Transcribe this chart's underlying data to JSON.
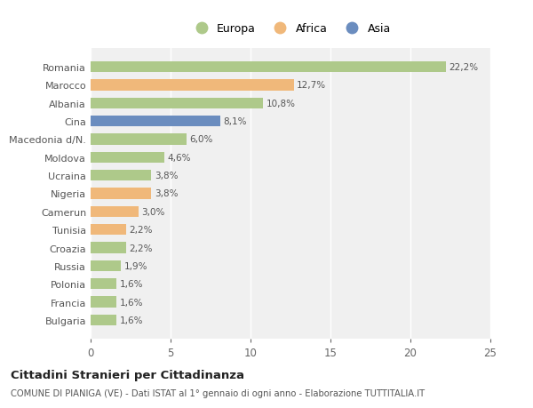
{
  "countries": [
    "Romania",
    "Marocco",
    "Albania",
    "Cina",
    "Macedonia d/N.",
    "Moldova",
    "Ucraina",
    "Nigeria",
    "Camerun",
    "Tunisia",
    "Croazia",
    "Russia",
    "Polonia",
    "Francia",
    "Bulgaria"
  ],
  "values": [
    22.2,
    12.7,
    10.8,
    8.1,
    6.0,
    4.6,
    3.8,
    3.8,
    3.0,
    2.2,
    2.2,
    1.9,
    1.6,
    1.6,
    1.6
  ],
  "labels": [
    "22,2%",
    "12,7%",
    "10,8%",
    "8,1%",
    "6,0%",
    "4,6%",
    "3,8%",
    "3,8%",
    "3,0%",
    "2,2%",
    "2,2%",
    "1,9%",
    "1,6%",
    "1,6%",
    "1,6%"
  ],
  "continents": [
    "Europa",
    "Africa",
    "Europa",
    "Asia",
    "Europa",
    "Europa",
    "Europa",
    "Africa",
    "Africa",
    "Africa",
    "Europa",
    "Europa",
    "Europa",
    "Europa",
    "Europa"
  ],
  "colors": {
    "Europa": "#aec98a",
    "Africa": "#f0b87a",
    "Asia": "#6b8dbf"
  },
  "xlim": [
    0,
    25
  ],
  "xticks": [
    0,
    5,
    10,
    15,
    20,
    25
  ],
  "title": "Cittadini Stranieri per Cittadinanza",
  "subtitle": "COMUNE DI PIANIGA (VE) - Dati ISTAT al 1° gennaio di ogni anno - Elaborazione TUTTITALIA.IT",
  "background_color": "#ffffff",
  "plot_bg_color": "#f0f0f0",
  "grid_color": "#ffffff",
  "bar_height": 0.6,
  "legend_order": [
    "Europa",
    "Africa",
    "Asia"
  ]
}
